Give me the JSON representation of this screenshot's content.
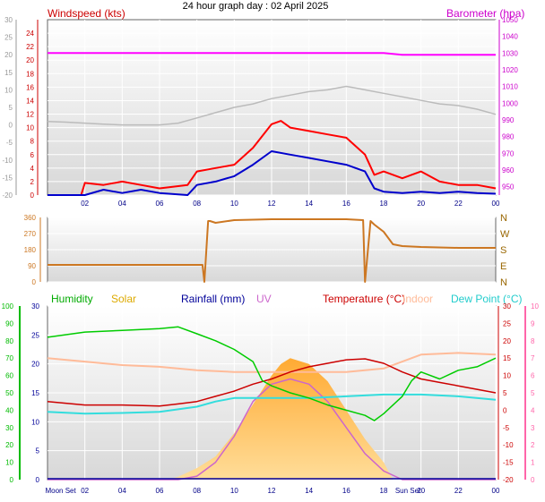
{
  "title": "24 hour graph day : 02 April 2025",
  "colors": {
    "windspeed": "#cc0000",
    "wind_gust": "#ff0000",
    "wind_avg": "#0000cc",
    "barometer": "#ff00ff",
    "temp_axis": "#999999",
    "direction": "#cc7722",
    "humidity": "#00cc00",
    "solar": "#ffbb33",
    "rainfall": "#000099",
    "uv": "#cc66cc",
    "temperature": "#cc0000",
    "indoor": "#ffbb99",
    "dewpoint": "#33dddd",
    "hum_axis": "#00bb00",
    "uv_axis": "#ff66aa",
    "baro_axis": "#cc00cc",
    "dir_axis": "#996600"
  },
  "chart_data": [
    {
      "type": "line",
      "panel": "wind",
      "title": "",
      "left_label": "Windspeed (kts)",
      "right_label": "Barometer (hpa)",
      "x_ticks": [
        "02",
        "04",
        "06",
        "08",
        "10",
        "12",
        "14",
        "16",
        "18",
        "20",
        "22",
        "00"
      ],
      "outer_left_ticks": [
        "30",
        "25",
        "20",
        "15",
        "10",
        "5",
        "0",
        "-5",
        "-10",
        "-15",
        "-20"
      ],
      "outer_left_range": [
        -20,
        30
      ],
      "left_ticks": [
        "0",
        "2",
        "4",
        "6",
        "8",
        "10",
        "12",
        "14",
        "16",
        "18",
        "20",
        "22",
        "24"
      ],
      "left_range": [
        0,
        26
      ],
      "right_ticks": [
        "950",
        "960",
        "970",
        "980",
        "990",
        "1000",
        "1010",
        "1020",
        "1030",
        "1040",
        "1050"
      ],
      "right_range": [
        945,
        1050
      ],
      "x_range": [
        0,
        24
      ],
      "series": [
        {
          "name": "Barometer (hpa)",
          "axis": "right",
          "x": [
            0,
            2,
            4,
            6,
            8,
            10,
            12,
            14,
            16,
            18,
            19,
            20,
            22,
            24
          ],
          "values": [
            1030,
            1030,
            1030,
            1030,
            1030,
            1030,
            1030,
            1030,
            1030,
            1030,
            1029,
            1029,
            1029,
            1029
          ]
        },
        {
          "name": "",
          "axis": "outer",
          "x": [
            0,
            1,
            2,
            3,
            4,
            5,
            6,
            7,
            8,
            9,
            10,
            11,
            12,
            13,
            14,
            15,
            16,
            16.5,
            17,
            18,
            19,
            20,
            21,
            22,
            23,
            24
          ],
          "values": [
            1,
            0.8,
            0.5,
            0.2,
            0,
            0,
            0,
            0.5,
            2,
            3.5,
            5,
            6,
            7.5,
            8.5,
            9.5,
            10,
            11,
            10.5,
            10,
            9,
            8,
            7,
            6,
            5.5,
            4.5,
            3
          ]
        },
        {
          "name": "",
          "axis": "left",
          "x": [
            0,
            1.8,
            2,
            3,
            4,
            5,
            6,
            7.5,
            8,
            9,
            10,
            11,
            12,
            12.5,
            13,
            14,
            15,
            16,
            17,
            17.5,
            18,
            19,
            20,
            21,
            22,
            23,
            24
          ],
          "values": [
            0,
            0,
            1.8,
            1.5,
            2,
            1.5,
            1,
            1.5,
            3.5,
            4,
            4.5,
            7,
            10.5,
            11,
            10,
            9.5,
            9,
            8.5,
            6,
            3,
            3.5,
            2.5,
            3.5,
            2,
            1.5,
            1.5,
            1
          ]
        },
        {
          "name": "",
          "axis": "left",
          "x": [
            0,
            2,
            3,
            4,
            5,
            6,
            7.5,
            8,
            9,
            10,
            11,
            12,
            13,
            14,
            15,
            16,
            17,
            17.5,
            18,
            19,
            20,
            21,
            22,
            23,
            24
          ],
          "values": [
            0,
            0,
            0.8,
            0.3,
            0.8,
            0.3,
            0,
            1.5,
            2,
            2.8,
            4.5,
            6.5,
            6,
            5.5,
            5,
            4.5,
            3.5,
            1,
            0.5,
            0.3,
            0.5,
            0.3,
            0.5,
            0.3,
            0.2
          ]
        }
      ]
    },
    {
      "type": "line",
      "panel": "direction",
      "title": "",
      "left_ticks": [
        "0",
        "90",
        "180",
        "270",
        "360"
      ],
      "left_range": [
        0,
        360
      ],
      "right_ticks": [
        "N",
        "E",
        "S",
        "W",
        "N"
      ],
      "x_range": [
        0,
        24
      ],
      "series": [
        {
          "name": "",
          "x": [
            0,
            8.3,
            8.4,
            8.6,
            8.7,
            9,
            10,
            12,
            14,
            16,
            16.9,
            17,
            17.3,
            17.5,
            18,
            18.5,
            19,
            20,
            22,
            24
          ],
          "values": [
            95,
            95,
            0,
            340,
            340,
            330,
            345,
            350,
            350,
            350,
            345,
            0,
            340,
            320,
            280,
            210,
            200,
            195,
            190,
            190
          ]
        }
      ]
    },
    {
      "type": "line",
      "panel": "temperature",
      "title": "",
      "labels": [
        "Humidity",
        "Solar",
        "Rainfall (mm)",
        "UV",
        "Temperature (°C)",
        "Indoor",
        "Dew Point (°C)"
      ],
      "x_ticks": [
        "Moon Set",
        "02",
        "04",
        "06",
        "08",
        "10",
        "12",
        "14",
        "16",
        "18",
        "Sun Set",
        "20",
        "22",
        "00"
      ],
      "hum_ticks": [
        "0",
        "10",
        "20",
        "30",
        "40",
        "50",
        "60",
        "70",
        "80",
        "90",
        "100"
      ],
      "hum_range": [
        0,
        100
      ],
      "solar_ticks": [
        "0",
        "5",
        "10",
        "15",
        "20",
        "25",
        "30"
      ],
      "solar_range": [
        0,
        30
      ],
      "temp_ticks": [
        "-20",
        "-15",
        "-10",
        "-5",
        "0",
        "5",
        "10",
        "15",
        "20",
        "25",
        "30"
      ],
      "temp_range": [
        -20,
        30
      ],
      "uv_ticks": [
        "0",
        "1",
        "2",
        "3",
        "4",
        "5",
        "6",
        "7",
        "8",
        "9",
        "10"
      ],
      "uv_range": [
        0,
        10
      ],
      "x_range": [
        0,
        24
      ],
      "series": [
        {
          "name": "Humidity",
          "axis": "hum",
          "x": [
            0,
            2,
            4,
            6,
            7,
            8,
            9,
            10,
            11,
            11.5,
            12,
            13,
            14,
            15,
            16,
            17,
            17.5,
            18,
            19,
            19.5,
            20,
            21,
            22,
            23,
            24
          ],
          "values": [
            82,
            85,
            86,
            87,
            88,
            84,
            80,
            75,
            68,
            57,
            54,
            50,
            47,
            43,
            40,
            37,
            34,
            38,
            48,
            57,
            62,
            58,
            63,
            65,
            70
          ]
        },
        {
          "name": "Solar",
          "axis": "solar",
          "x": [
            0,
            6.5,
            7,
            8,
            9,
            10,
            11,
            12,
            12.5,
            13,
            14,
            15,
            16,
            17,
            17.5,
            18,
            18.5,
            24
          ],
          "values": [
            0,
            0,
            0.5,
            2,
            4,
            8,
            13,
            18,
            20,
            21,
            20,
            17,
            12,
            7,
            5,
            3,
            0,
            0
          ]
        },
        {
          "name": "UV",
          "axis": "uv",
          "x": [
            0,
            7,
            8,
            9,
            10,
            11,
            12,
            13,
            14,
            15,
            16,
            17,
            18,
            19,
            24
          ],
          "values": [
            0,
            0,
            0.2,
            1,
            2.5,
            4.5,
            5.5,
            5.8,
            5.5,
            4.5,
            3,
            1.5,
            0.5,
            0,
            0
          ]
        },
        {
          "name": "Temperature (°C)",
          "axis": "temp",
          "x": [
            0,
            2,
            4,
            6,
            7,
            8,
            9,
            10,
            11,
            12,
            13,
            14,
            15,
            16,
            17,
            18,
            19,
            20,
            21,
            22,
            23,
            24
          ],
          "values": [
            2.5,
            1.5,
            1.5,
            1.2,
            1.8,
            2.5,
            4,
            5.5,
            7.5,
            9,
            11,
            12.5,
            13.5,
            14.5,
            14.8,
            13.5,
            11,
            9,
            8,
            7,
            6,
            5
          ]
        },
        {
          "name": "Indoor",
          "axis": "temp",
          "x": [
            0,
            2,
            4,
            6,
            8,
            10,
            12,
            14,
            16,
            18,
            20,
            22,
            24
          ],
          "values": [
            15,
            14,
            13,
            12.5,
            11.5,
            11,
            11,
            11,
            11,
            12,
            16,
            16.5,
            16
          ]
        },
        {
          "name": "Dew Point (°C)",
          "axis": "temp",
          "x": [
            0,
            2,
            4,
            6,
            8,
            9,
            10,
            12,
            14,
            16,
            18,
            20,
            22,
            24
          ],
          "values": [
            -0.5,
            -1,
            -0.8,
            -0.5,
            1,
            2.5,
            3.5,
            3.5,
            3.5,
            4,
            4.5,
            4.5,
            4,
            3
          ]
        }
      ]
    }
  ]
}
